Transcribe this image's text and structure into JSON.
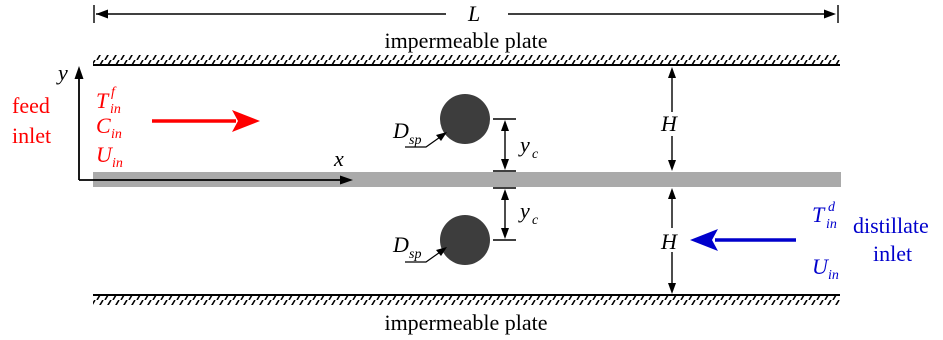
{
  "dimension_length": "L",
  "plate_top": "impermeable plate",
  "plate_bottom": "impermeable plate",
  "axis_y": "y",
  "axis_x": "x",
  "feed": {
    "label_line1": "feed",
    "label_line2": "inlet",
    "T_base": "T",
    "T_sup": "f",
    "T_sub": "in",
    "C_base": "C",
    "C_sub": "in",
    "U_base": "U",
    "U_sub": "in"
  },
  "spacer": {
    "D_base": "D",
    "D_sub": "sp",
    "yc_base": "y",
    "yc_sub": "c"
  },
  "channel_height": "H",
  "distillate": {
    "label_line1": "distillate",
    "label_line2": "inlet",
    "T_base": "T",
    "T_sup": "d",
    "T_sub": "in",
    "U_base": "U",
    "U_sub": "in"
  },
  "colors": {
    "feed": "#ff0000",
    "distillate": "#0000cc",
    "membrane": "#aaaaaa",
    "spacer": "#3d3d3d",
    "line": "#000000"
  }
}
